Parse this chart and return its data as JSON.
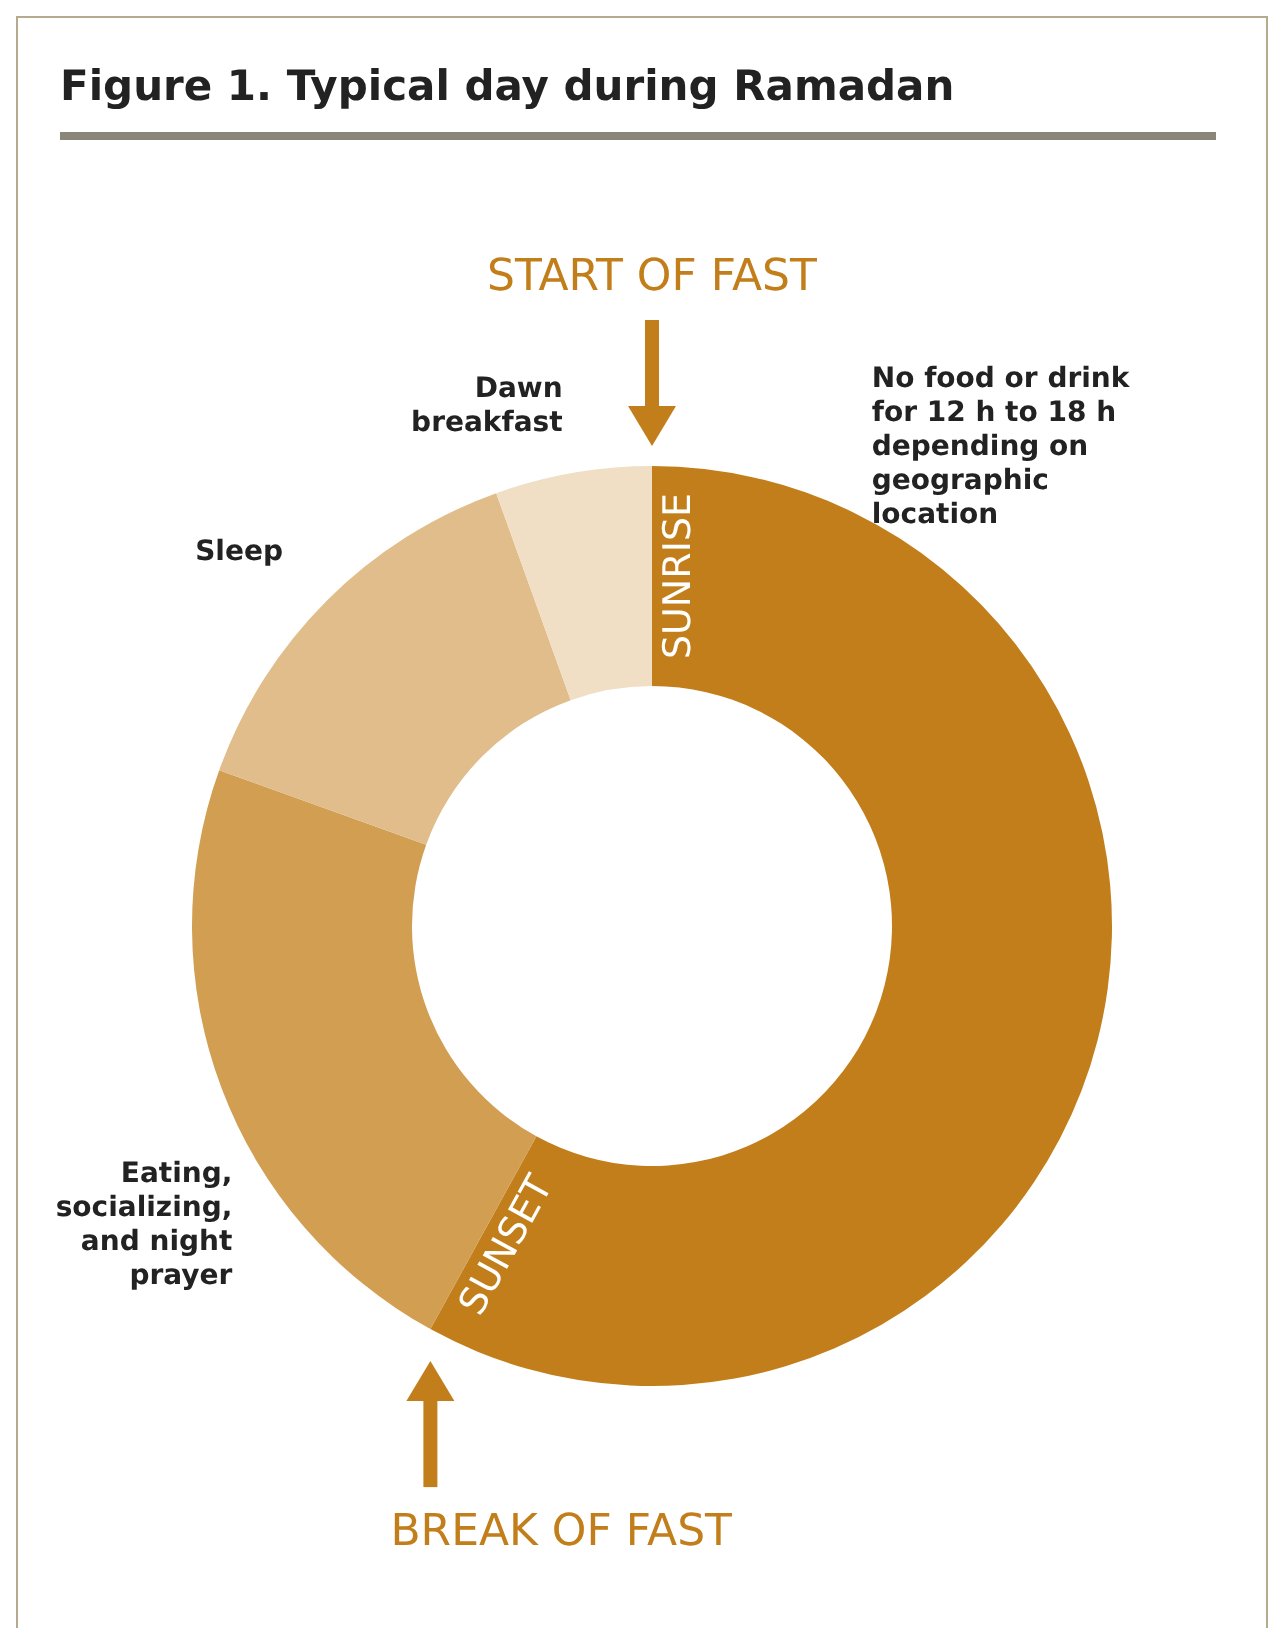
{
  "chart_data": {
    "type": "donut",
    "title": "Figure 1. Typical day during Ramadan",
    "categories": [
      "No food or drink for 12 h to 18 h depending on geographic location",
      "Eating, socializing, and night prayer",
      "Sleep",
      "Dawn breakfast"
    ],
    "values": [
      58,
      22.5,
      14,
      5.5
    ],
    "colors": [
      "#c27e1a",
      "#d29e52",
      "#e0bd8a",
      "#f0dfc4"
    ],
    "annotations": [
      "START OF FAST",
      "BREAK OF FAST",
      "SUNRISE",
      "SUNSET"
    ]
  }
}
